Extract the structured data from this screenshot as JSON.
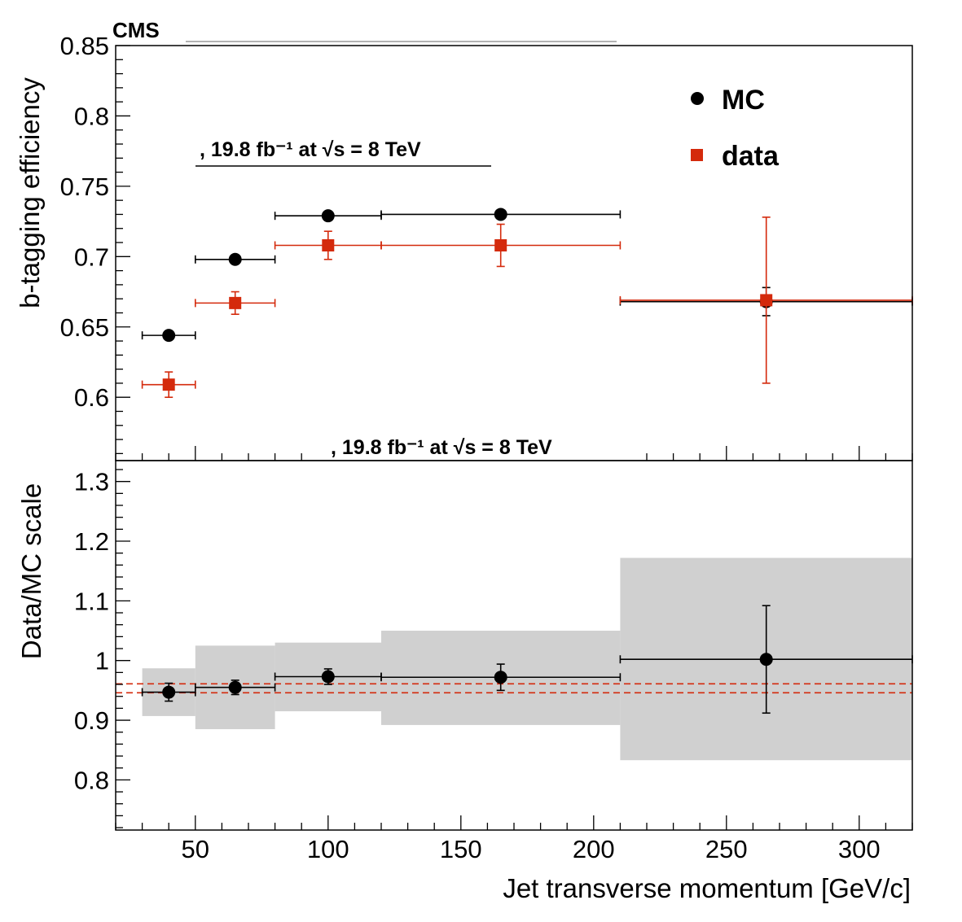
{
  "chart_data": [
    {
      "type": "scatter",
      "panel": "top",
      "ylabel": "b-tagging efficiency",
      "ylim": [
        0.555,
        0.85
      ],
      "xlim": [
        20,
        320
      ],
      "yticks": [
        "0.6",
        "0.65",
        "0.7",
        "0.75",
        "0.8",
        "0.85"
      ],
      "label_cms": "CMS",
      "annotation": ", 19.8 fb⁻¹ at √s = 8 TeV",
      "legend_position": "top-right",
      "series": [
        {
          "name": "MC",
          "color": "#000000",
          "marker": "circle",
          "points": [
            {
              "x": 40,
              "xlo": 30,
              "xhi": 50,
              "y": 0.644,
              "yerr": 0.0
            },
            {
              "x": 65,
              "xlo": 50,
              "xhi": 80,
              "y": 0.698,
              "yerr": 0.0
            },
            {
              "x": 100,
              "xlo": 80,
              "xhi": 120,
              "y": 0.729,
              "yerr": 0.0
            },
            {
              "x": 165,
              "xlo": 120,
              "xhi": 210,
              "y": 0.73,
              "yerr": 0.0
            },
            {
              "x": 265,
              "xlo": 210,
              "xhi": 320,
              "y": 0.668,
              "yerr": 0.01
            }
          ]
        },
        {
          "name": "data",
          "color": "#d42a0c",
          "marker": "square",
          "points": [
            {
              "x": 40,
              "xlo": 30,
              "xhi": 50,
              "y": 0.609,
              "yerr": 0.009
            },
            {
              "x": 65,
              "xlo": 50,
              "xhi": 80,
              "y": 0.667,
              "yerr": 0.008
            },
            {
              "x": 100,
              "xlo": 80,
              "xhi": 120,
              "y": 0.708,
              "yerr": 0.01
            },
            {
              "x": 165,
              "xlo": 120,
              "xhi": 210,
              "y": 0.708,
              "yerr": 0.015
            },
            {
              "x": 265,
              "xlo": 210,
              "xhi": 320,
              "y": 0.669,
              "yerr": 0.059
            }
          ]
        }
      ]
    },
    {
      "type": "scatter",
      "panel": "bottom",
      "xlabel": "Jet transverse momentum [GeV/c]",
      "ylabel": "Data/MC scale",
      "ylim": [
        0.716,
        1.335
      ],
      "xlim": [
        20,
        320
      ],
      "xticks": [
        "50",
        "100",
        "150",
        "200",
        "250",
        "300"
      ],
      "yticks": [
        "0.8",
        "0.9",
        "1",
        "1.1",
        "1.2",
        "1.3"
      ],
      "annotation": ", 19.8 fb⁻¹ at √s = 8 TeV",
      "band_color": "#d0d0d0",
      "reference_lines": [
        0.946,
        0.961
      ],
      "reference_color": "#d42a0c",
      "bands": [
        {
          "xlo": 30,
          "xhi": 50,
          "ylo": 0.907,
          "yhi": 0.987
        },
        {
          "xlo": 50,
          "xhi": 80,
          "ylo": 0.885,
          "yhi": 1.025
        },
        {
          "xlo": 80,
          "xhi": 120,
          "ylo": 0.915,
          "yhi": 1.03
        },
        {
          "xlo": 120,
          "xhi": 210,
          "ylo": 0.892,
          "yhi": 1.05
        },
        {
          "xlo": 210,
          "xhi": 320,
          "ylo": 0.833,
          "yhi": 1.172
        }
      ],
      "series": [
        {
          "color": "#000000",
          "marker": "circle",
          "points": [
            {
              "x": 40,
              "xlo": 30,
              "xhi": 50,
              "y": 0.947,
              "yerr": 0.015
            },
            {
              "x": 65,
              "xlo": 50,
              "xhi": 80,
              "y": 0.955,
              "yerr": 0.012
            },
            {
              "x": 100,
              "xlo": 80,
              "xhi": 120,
              "y": 0.973,
              "yerr": 0.013
            },
            {
              "x": 165,
              "xlo": 120,
              "xhi": 210,
              "y": 0.972,
              "yerr": 0.022
            },
            {
              "x": 265,
              "xlo": 210,
              "xhi": 320,
              "y": 1.002,
              "yerr": 0.09
            }
          ]
        }
      ]
    }
  ]
}
